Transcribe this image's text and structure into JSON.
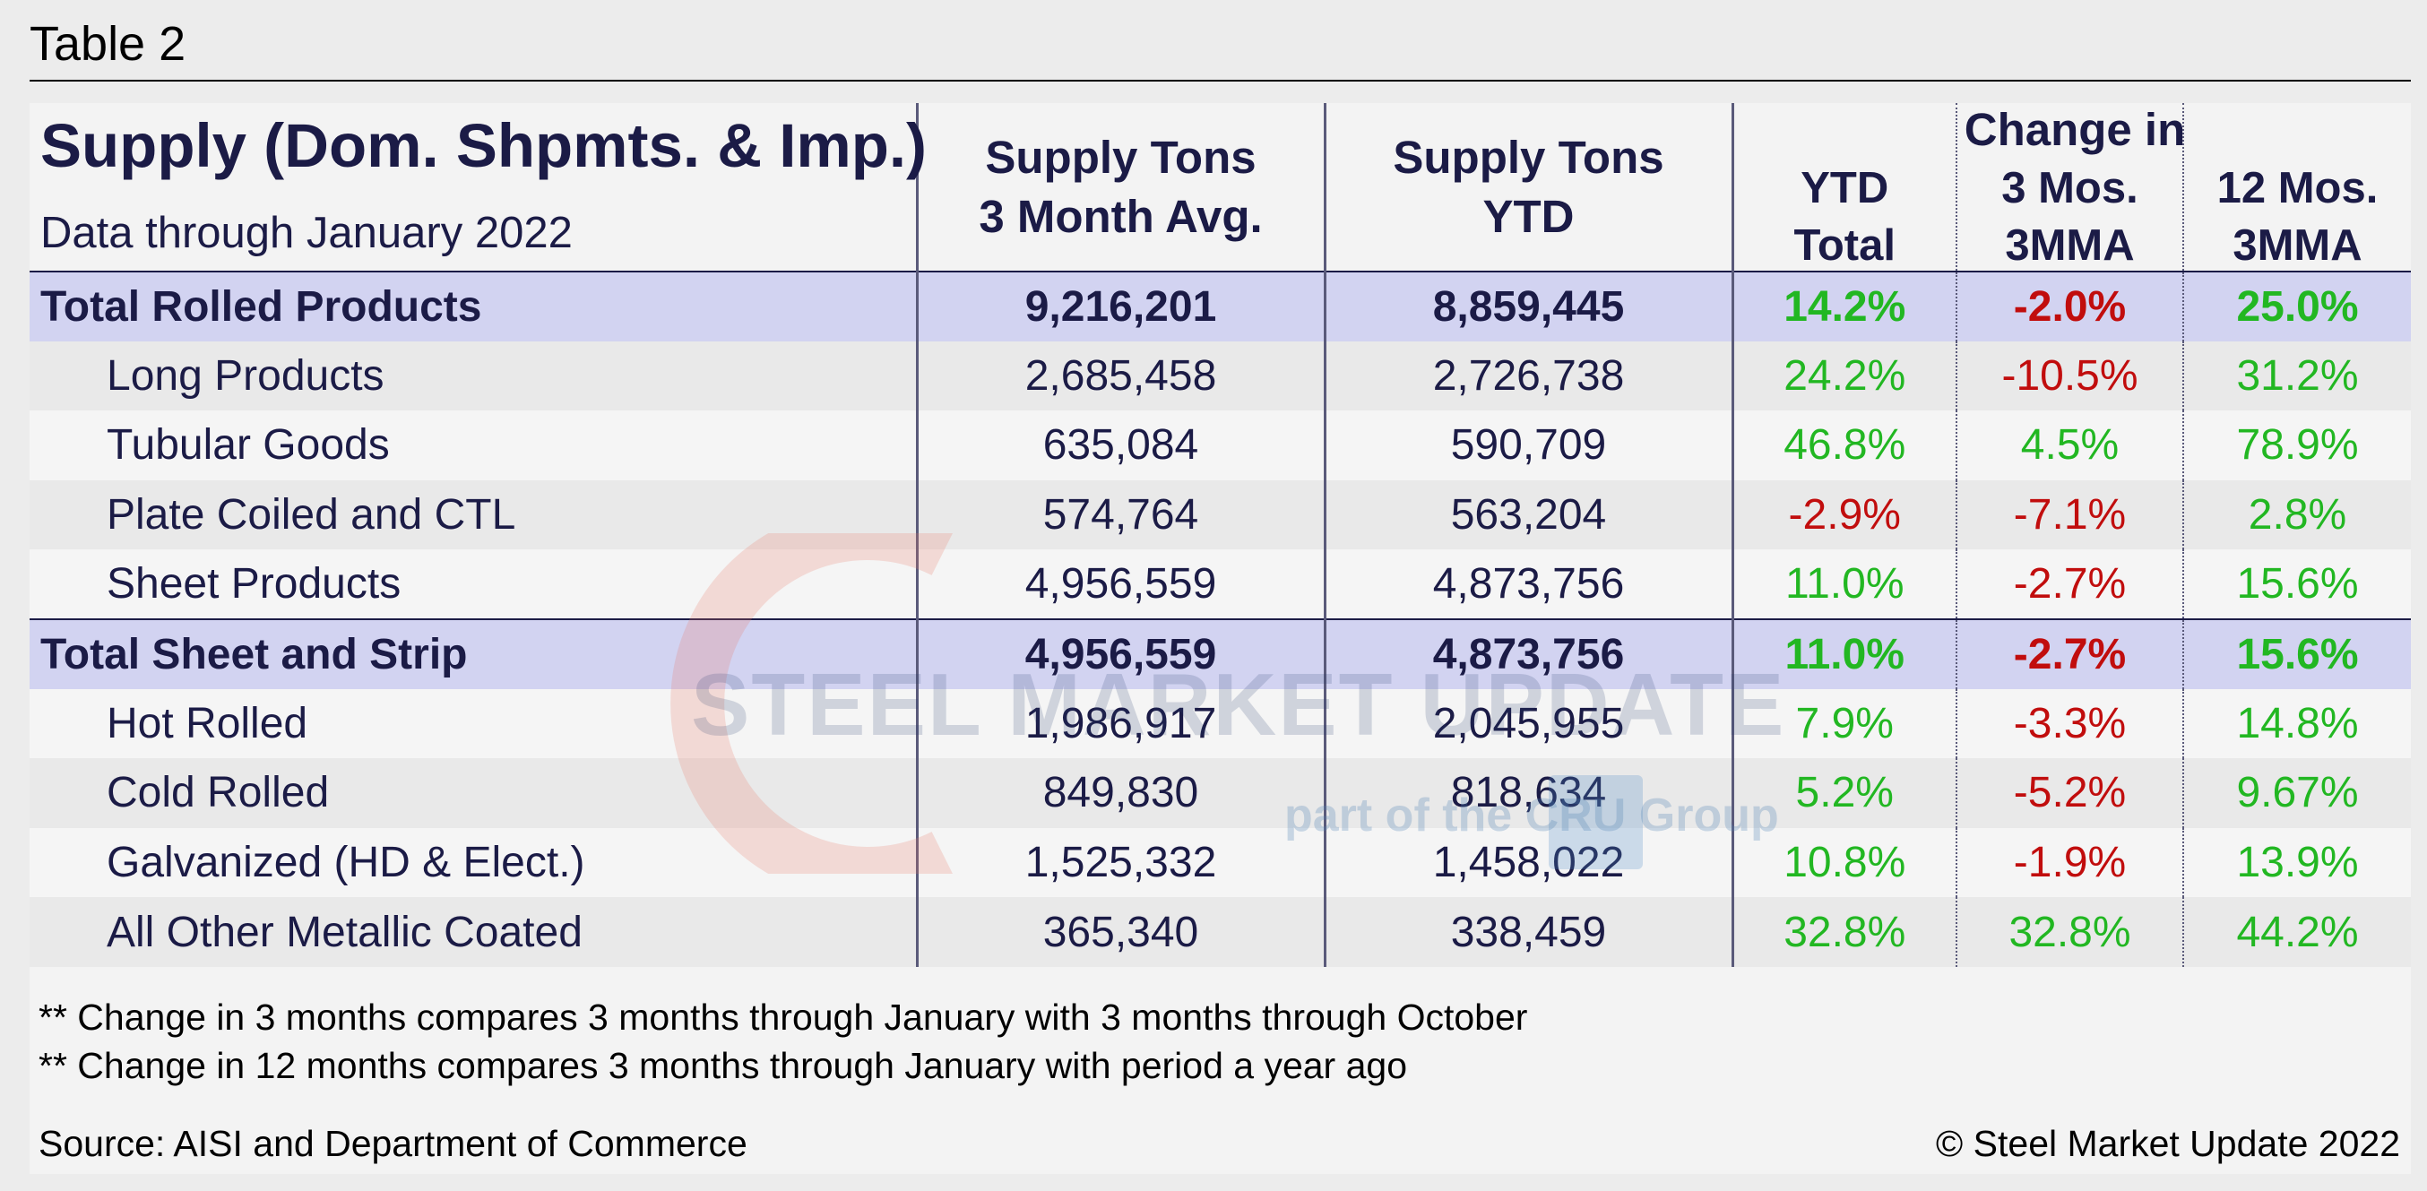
{
  "page": {
    "title": "Table 2"
  },
  "table": {
    "header": {
      "title": "Supply (Dom. Shpmts. & Imp.)",
      "subtitle": "Data through January 2022",
      "col_supply_3m_line1": "Supply Tons",
      "col_supply_3m_line2": "3 Month Avg.",
      "col_supply_ytd_line1": "Supply Tons",
      "col_supply_ytd_line2": "YTD",
      "change_group": "Change in",
      "col_ytd_line1": "YTD",
      "col_ytd_line2": "Total",
      "col_3mos_line1": "3 Mos.",
      "col_3mos_line2": "3MMA",
      "col_12mos_line1": "12 Mos.",
      "col_12mos_line2": "3MMA"
    },
    "rows": [
      {
        "label": "Total Rolled Products",
        "supply_3m": "9,216,201",
        "supply_ytd": "8,859,445",
        "ytd_total": "14.2%",
        "mos3": "-2.0%",
        "mos12": "25.0%"
      },
      {
        "label": "Long Products",
        "supply_3m": "2,685,458",
        "supply_ytd": "2,726,738",
        "ytd_total": "24.2%",
        "mos3": "-10.5%",
        "mos12": "31.2%"
      },
      {
        "label": "Tubular Goods",
        "supply_3m": "635,084",
        "supply_ytd": "590,709",
        "ytd_total": "46.8%",
        "mos3": "4.5%",
        "mos12": "78.9%"
      },
      {
        "label": "Plate Coiled and CTL",
        "supply_3m": "574,764",
        "supply_ytd": "563,204",
        "ytd_total": "-2.9%",
        "mos3": "-7.1%",
        "mos12": "2.8%"
      },
      {
        "label": "Sheet Products",
        "supply_3m": "4,956,559",
        "supply_ytd": "4,873,756",
        "ytd_total": "11.0%",
        "mos3": "-2.7%",
        "mos12": "15.6%"
      },
      {
        "label": "Total Sheet and Strip",
        "supply_3m": "4,956,559",
        "supply_ytd": "4,873,756",
        "ytd_total": "11.0%",
        "mos3": "-2.7%",
        "mos12": "15.6%"
      },
      {
        "label": "Hot Rolled",
        "supply_3m": "1,986,917",
        "supply_ytd": "2,045,955",
        "ytd_total": "7.9%",
        "mos3": "-3.3%",
        "mos12": "14.8%"
      },
      {
        "label": "Cold Rolled",
        "supply_3m": "849,830",
        "supply_ytd": "818,634",
        "ytd_total": "5.2%",
        "mos3": "-5.2%",
        "mos12": "9.67%"
      },
      {
        "label": "Galvanized (HD & Elect.)",
        "supply_3m": "1,525,332",
        "supply_ytd": "1,458,022",
        "ytd_total": "10.8%",
        "mos3": "-1.9%",
        "mos12": "13.9%"
      },
      {
        "label": "All Other Metallic Coated",
        "supply_3m": "365,340",
        "supply_ytd": "338,459",
        "ytd_total": "32.8%",
        "mos3": "32.8%",
        "mos12": "44.2%"
      }
    ]
  },
  "notes": [
    "** Change in 3 months compares 3 months through January with 3 months through October",
    "** Change in 12 months compares 3 months through January with period a year ago"
  ],
  "source": "Source: AISI and Department of Commerce",
  "copyright": "© Steel Market Update 2022",
  "watermark": {
    "brand": "STEEL MARKET UPDATE",
    "tagline": "part of the CRU Group"
  },
  "colors": {
    "navy_text": "#1b1b46",
    "positive": "#22b722",
    "negative": "#c10d0d",
    "total_row_bg": "#d2d3f1"
  }
}
